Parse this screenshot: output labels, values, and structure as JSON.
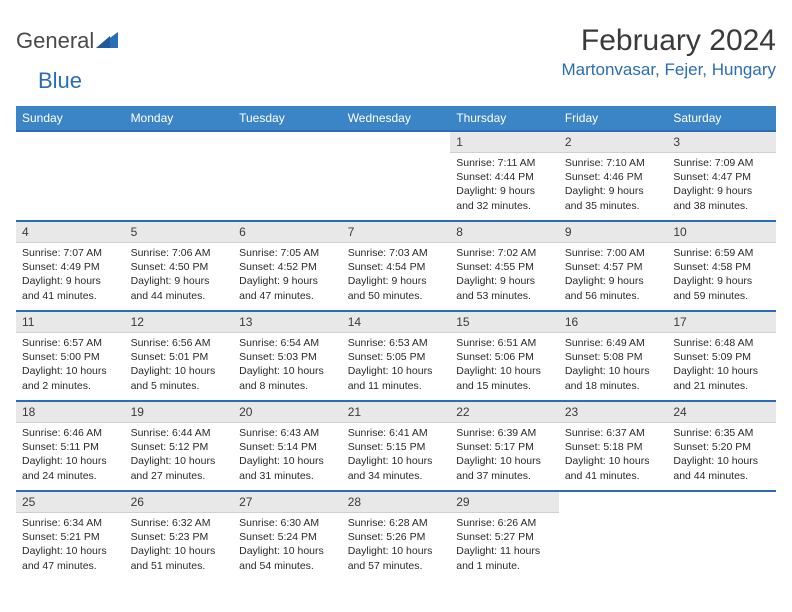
{
  "logo": {
    "text1": "General",
    "text2": "Blue"
  },
  "title": "February 2024",
  "location": "Martonvasar, Fejer, Hungary",
  "colors": {
    "header_bg": "#3b85c6",
    "accent": "#2a6db5",
    "daynum_bg": "#e8e8e8",
    "text": "#2a2a2a"
  },
  "weekdays": [
    "Sunday",
    "Monday",
    "Tuesday",
    "Wednesday",
    "Thursday",
    "Friday",
    "Saturday"
  ],
  "weeks": [
    [
      null,
      null,
      null,
      null,
      {
        "n": "1",
        "sr": "Sunrise: 7:11 AM",
        "ss": "Sunset: 4:44 PM",
        "d1": "Daylight: 9 hours",
        "d2": "and 32 minutes."
      },
      {
        "n": "2",
        "sr": "Sunrise: 7:10 AM",
        "ss": "Sunset: 4:46 PM",
        "d1": "Daylight: 9 hours",
        "d2": "and 35 minutes."
      },
      {
        "n": "3",
        "sr": "Sunrise: 7:09 AM",
        "ss": "Sunset: 4:47 PM",
        "d1": "Daylight: 9 hours",
        "d2": "and 38 minutes."
      }
    ],
    [
      {
        "n": "4",
        "sr": "Sunrise: 7:07 AM",
        "ss": "Sunset: 4:49 PM",
        "d1": "Daylight: 9 hours",
        "d2": "and 41 minutes."
      },
      {
        "n": "5",
        "sr": "Sunrise: 7:06 AM",
        "ss": "Sunset: 4:50 PM",
        "d1": "Daylight: 9 hours",
        "d2": "and 44 minutes."
      },
      {
        "n": "6",
        "sr": "Sunrise: 7:05 AM",
        "ss": "Sunset: 4:52 PM",
        "d1": "Daylight: 9 hours",
        "d2": "and 47 minutes."
      },
      {
        "n": "7",
        "sr": "Sunrise: 7:03 AM",
        "ss": "Sunset: 4:54 PM",
        "d1": "Daylight: 9 hours",
        "d2": "and 50 minutes."
      },
      {
        "n": "8",
        "sr": "Sunrise: 7:02 AM",
        "ss": "Sunset: 4:55 PM",
        "d1": "Daylight: 9 hours",
        "d2": "and 53 minutes."
      },
      {
        "n": "9",
        "sr": "Sunrise: 7:00 AM",
        "ss": "Sunset: 4:57 PM",
        "d1": "Daylight: 9 hours",
        "d2": "and 56 minutes."
      },
      {
        "n": "10",
        "sr": "Sunrise: 6:59 AM",
        "ss": "Sunset: 4:58 PM",
        "d1": "Daylight: 9 hours",
        "d2": "and 59 minutes."
      }
    ],
    [
      {
        "n": "11",
        "sr": "Sunrise: 6:57 AM",
        "ss": "Sunset: 5:00 PM",
        "d1": "Daylight: 10 hours",
        "d2": "and 2 minutes."
      },
      {
        "n": "12",
        "sr": "Sunrise: 6:56 AM",
        "ss": "Sunset: 5:01 PM",
        "d1": "Daylight: 10 hours",
        "d2": "and 5 minutes."
      },
      {
        "n": "13",
        "sr": "Sunrise: 6:54 AM",
        "ss": "Sunset: 5:03 PM",
        "d1": "Daylight: 10 hours",
        "d2": "and 8 minutes."
      },
      {
        "n": "14",
        "sr": "Sunrise: 6:53 AM",
        "ss": "Sunset: 5:05 PM",
        "d1": "Daylight: 10 hours",
        "d2": "and 11 minutes."
      },
      {
        "n": "15",
        "sr": "Sunrise: 6:51 AM",
        "ss": "Sunset: 5:06 PM",
        "d1": "Daylight: 10 hours",
        "d2": "and 15 minutes."
      },
      {
        "n": "16",
        "sr": "Sunrise: 6:49 AM",
        "ss": "Sunset: 5:08 PM",
        "d1": "Daylight: 10 hours",
        "d2": "and 18 minutes."
      },
      {
        "n": "17",
        "sr": "Sunrise: 6:48 AM",
        "ss": "Sunset: 5:09 PM",
        "d1": "Daylight: 10 hours",
        "d2": "and 21 minutes."
      }
    ],
    [
      {
        "n": "18",
        "sr": "Sunrise: 6:46 AM",
        "ss": "Sunset: 5:11 PM",
        "d1": "Daylight: 10 hours",
        "d2": "and 24 minutes."
      },
      {
        "n": "19",
        "sr": "Sunrise: 6:44 AM",
        "ss": "Sunset: 5:12 PM",
        "d1": "Daylight: 10 hours",
        "d2": "and 27 minutes."
      },
      {
        "n": "20",
        "sr": "Sunrise: 6:43 AM",
        "ss": "Sunset: 5:14 PM",
        "d1": "Daylight: 10 hours",
        "d2": "and 31 minutes."
      },
      {
        "n": "21",
        "sr": "Sunrise: 6:41 AM",
        "ss": "Sunset: 5:15 PM",
        "d1": "Daylight: 10 hours",
        "d2": "and 34 minutes."
      },
      {
        "n": "22",
        "sr": "Sunrise: 6:39 AM",
        "ss": "Sunset: 5:17 PM",
        "d1": "Daylight: 10 hours",
        "d2": "and 37 minutes."
      },
      {
        "n": "23",
        "sr": "Sunrise: 6:37 AM",
        "ss": "Sunset: 5:18 PM",
        "d1": "Daylight: 10 hours",
        "d2": "and 41 minutes."
      },
      {
        "n": "24",
        "sr": "Sunrise: 6:35 AM",
        "ss": "Sunset: 5:20 PM",
        "d1": "Daylight: 10 hours",
        "d2": "and 44 minutes."
      }
    ],
    [
      {
        "n": "25",
        "sr": "Sunrise: 6:34 AM",
        "ss": "Sunset: 5:21 PM",
        "d1": "Daylight: 10 hours",
        "d2": "and 47 minutes."
      },
      {
        "n": "26",
        "sr": "Sunrise: 6:32 AM",
        "ss": "Sunset: 5:23 PM",
        "d1": "Daylight: 10 hours",
        "d2": "and 51 minutes."
      },
      {
        "n": "27",
        "sr": "Sunrise: 6:30 AM",
        "ss": "Sunset: 5:24 PM",
        "d1": "Daylight: 10 hours",
        "d2": "and 54 minutes."
      },
      {
        "n": "28",
        "sr": "Sunrise: 6:28 AM",
        "ss": "Sunset: 5:26 PM",
        "d1": "Daylight: 10 hours",
        "d2": "and 57 minutes."
      },
      {
        "n": "29",
        "sr": "Sunrise: 6:26 AM",
        "ss": "Sunset: 5:27 PM",
        "d1": "Daylight: 11 hours",
        "d2": "and 1 minute."
      },
      null,
      null
    ]
  ]
}
